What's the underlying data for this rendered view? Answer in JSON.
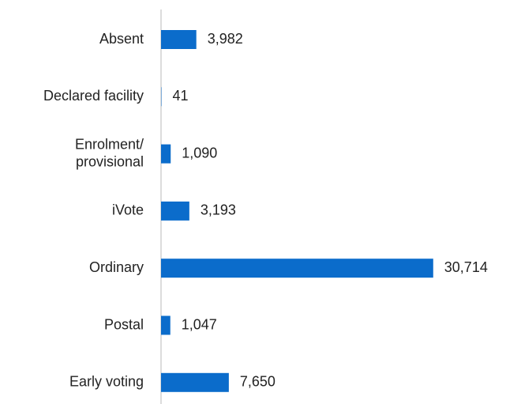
{
  "chart_data": {
    "type": "barh",
    "categories": [
      "Absent",
      "Declared facility",
      "Enrolment/\nprovisional",
      "iVote",
      "Ordinary",
      "Postal",
      "Early voting"
    ],
    "values": [
      3982,
      41,
      1090,
      3193,
      30714,
      1047,
      7650
    ],
    "value_labels": [
      "3,982",
      "41",
      "1,090",
      "3,193",
      "30,714",
      "1,047",
      "7,650"
    ],
    "color": "#0b6ccb",
    "xlim": [
      0,
      31000
    ]
  }
}
